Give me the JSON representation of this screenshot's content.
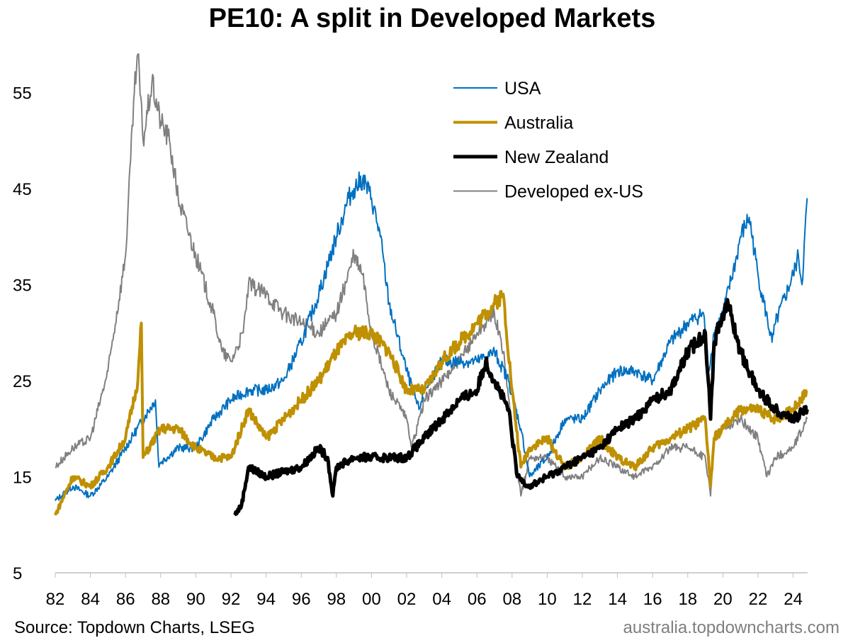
{
  "chart_data": {
    "type": "line",
    "title": "PE10: A split in Developed Markets",
    "xlabel": "",
    "ylabel": "",
    "xlim": [
      1982,
      2025
    ],
    "ylim": [
      5,
      60
    ],
    "yticks": [
      5,
      15,
      25,
      35,
      45,
      55
    ],
    "xticks": [
      "82",
      "84",
      "86",
      "88",
      "90",
      "92",
      "94",
      "96",
      "98",
      "00",
      "02",
      "04",
      "06",
      "08",
      "10",
      "12",
      "14",
      "16",
      "18",
      "20",
      "22",
      "24"
    ],
    "legend_position": "top-right",
    "grid": false,
    "series": [
      {
        "name": "USA",
        "color": "#0070c0",
        "width": 2,
        "x": [
          1982,
          1983,
          1984,
          1985,
          1986,
          1987,
          1987.7,
          1987.9,
          1988,
          1989,
          1990,
          1991,
          1992,
          1993,
          1994,
          1995,
          1996,
          1997,
          1998,
          1998.7,
          1999,
          1999.5,
          2000,
          2000.5,
          2001,
          2002,
          2002.7,
          2003,
          2004,
          2005,
          2006,
          2007,
          2007.8,
          2008.5,
          2009,
          2010,
          2011,
          2012,
          2013,
          2014,
          2015,
          2016,
          2017,
          2018,
          2018.9,
          2019.2,
          2019.5,
          2020,
          2020.8,
          2021,
          2021.5,
          2022,
          2022.8,
          2023,
          2024,
          2024.3,
          2024.5,
          2024.8
        ],
        "values": [
          12.5,
          14,
          13,
          15,
          18,
          21,
          23,
          16,
          16.5,
          18,
          18,
          21,
          23,
          24,
          24,
          25,
          29,
          34,
          40,
          44,
          45,
          46,
          44,
          40,
          33,
          26,
          22,
          24,
          27,
          27,
          27,
          28,
          25,
          20,
          15,
          17,
          21,
          21,
          24,
          26,
          26,
          25,
          29,
          31,
          32,
          26,
          30,
          32,
          38,
          40,
          42,
          36,
          29,
          31,
          36,
          38,
          35,
          44
        ]
      },
      {
        "name": "Australia",
        "color": "#bf9000",
        "width": 4,
        "x": [
          1982,
          1983,
          1984,
          1985,
          1986,
          1986.7,
          1986.9,
          1987,
          1988,
          1989,
          1990,
          1991,
          1992,
          1993,
          1994,
          1995,
          1996,
          1997,
          1998,
          1999,
          2000,
          2001,
          2002,
          2003,
          2004,
          2005,
          2006,
          2007,
          2007.5,
          2008,
          2008.5,
          2009,
          2010,
          2011,
          2012,
          2013,
          2014,
          2015,
          2016,
          2017,
          2018,
          2019,
          2019.3,
          2019.5,
          2020,
          2021,
          2022,
          2023,
          2024,
          2024.8
        ],
        "values": [
          11,
          15,
          14,
          16,
          19,
          25,
          31,
          17,
          20,
          20,
          18,
          17,
          17,
          22,
          19,
          21,
          23,
          25,
          28,
          30,
          30,
          28,
          24,
          24,
          27,
          29,
          31,
          33,
          34,
          24,
          16,
          18,
          19,
          16,
          17,
          19,
          17,
          16,
          18,
          19,
          20,
          21,
          14,
          19,
          20,
          22,
          22,
          21,
          22,
          24
        ]
      },
      {
        "name": "New Zealand",
        "color": "#000000",
        "width": 5,
        "x": [
          1992.2,
          1992.6,
          1993,
          1994,
          1995,
          1996,
          1997,
          1997.5,
          1997.8,
          1998,
          1999,
          2000,
          2001,
          2002,
          2003,
          2004,
          2005,
          2006,
          2006.5,
          2007,
          2007.8,
          2008.3,
          2009,
          2010,
          2011,
          2012,
          2013,
          2014,
          2015,
          2016,
          2017,
          2018,
          2019,
          2019.3,
          2019.5,
          2020,
          2020.3,
          2021,
          2022,
          2023,
          2024,
          2024.8
        ],
        "values": [
          11,
          12,
          16,
          15,
          15.5,
          16,
          18,
          17,
          13,
          16,
          17,
          17,
          17,
          17,
          19,
          21,
          23,
          24,
          27,
          25,
          22,
          15,
          14,
          15,
          16,
          17,
          18,
          20,
          21,
          23,
          24,
          28,
          30,
          21,
          29,
          32,
          33,
          28,
          24,
          22,
          21,
          22
        ]
      },
      {
        "name": "Developed ex-US",
        "color": "#808080",
        "width": 2,
        "x": [
          1982,
          1983,
          1984,
          1985,
          1986,
          1986.5,
          1986.7,
          1987,
          1987.5,
          1988,
          1988.5,
          1989,
          1990,
          1991,
          1991.5,
          1992,
          1992.7,
          1993,
          1994,
          1995,
          1996,
          1997,
          1998,
          1999,
          1999.5,
          2000,
          2001,
          2002,
          2002.3,
          2003,
          2004,
          2005,
          2006,
          2007,
          2007.5,
          2008,
          2008.5,
          2009,
          2010,
          2011,
          2012,
          2013,
          2014,
          2015,
          2016,
          2017,
          2018,
          2019,
          2019.3,
          2019.5,
          2020,
          2021,
          2022,
          2022.5,
          2023,
          2024,
          2024.8
        ],
        "values": [
          16,
          18,
          19,
          26,
          38,
          55,
          59,
          50,
          56,
          52,
          50,
          44,
          38,
          32,
          28,
          27,
          30,
          35,
          34,
          32,
          31,
          30,
          32,
          38,
          36,
          30,
          24,
          21,
          18,
          23,
          25,
          27,
          30,
          32,
          28,
          20,
          13,
          17,
          17,
          15,
          15,
          17,
          16,
          15,
          16,
          18,
          18,
          17,
          13,
          19,
          20,
          21,
          19,
          15,
          17,
          18,
          21
        ]
      }
    ]
  },
  "footer": {
    "source": "Source: Topdown Charts, LSEG",
    "watermark": "australia.topdowncharts.com"
  }
}
